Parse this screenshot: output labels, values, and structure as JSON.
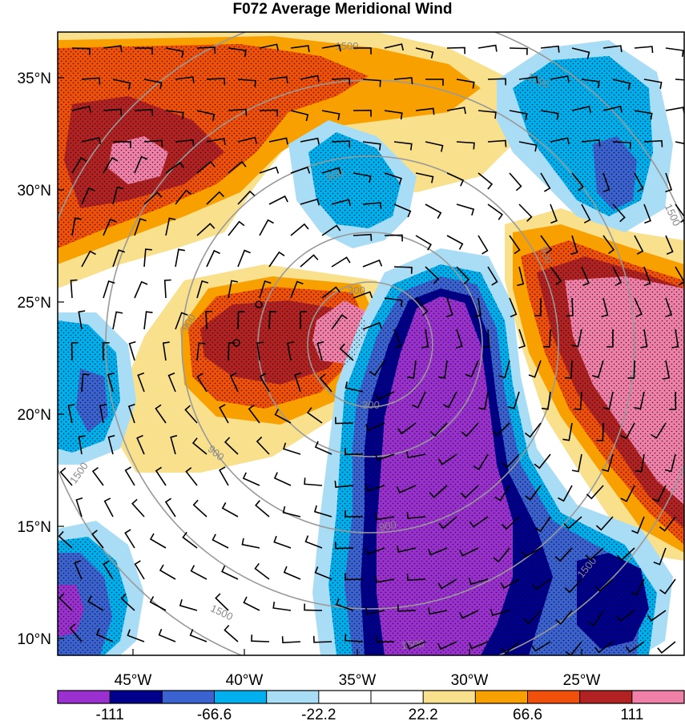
{
  "title": "F072 Average Meridional Wind",
  "map": {
    "lat_labels": [
      "35°N",
      "30°N",
      "25°N",
      "20°N",
      "15°N",
      "10°N"
    ],
    "lon_labels": [
      "45°W",
      "40°W",
      "35°W",
      "30°W",
      "25°W"
    ],
    "range_ring_labels": [
      "300",
      "300",
      "900",
      "900",
      "900",
      "900",
      "900",
      "1500",
      "1500",
      "1500",
      "1500",
      "1500",
      "1500",
      "1500"
    ],
    "grid_lines": false,
    "stippling": true,
    "wind_barbs": true
  },
  "colorbar": {
    "labels": [
      "-111",
      "-66.6",
      "-22.2",
      "22.2",
      "66.6",
      "111"
    ],
    "colors": [
      "#9b30d0",
      "#00008c",
      "#3a62d0",
      "#00b0ee",
      "#a9dcf5",
      "#ffffff",
      "#ffffff",
      "#f8e08c",
      "#f8a000",
      "#f0500a",
      "#b22222",
      "#f080a8"
    ]
  }
}
